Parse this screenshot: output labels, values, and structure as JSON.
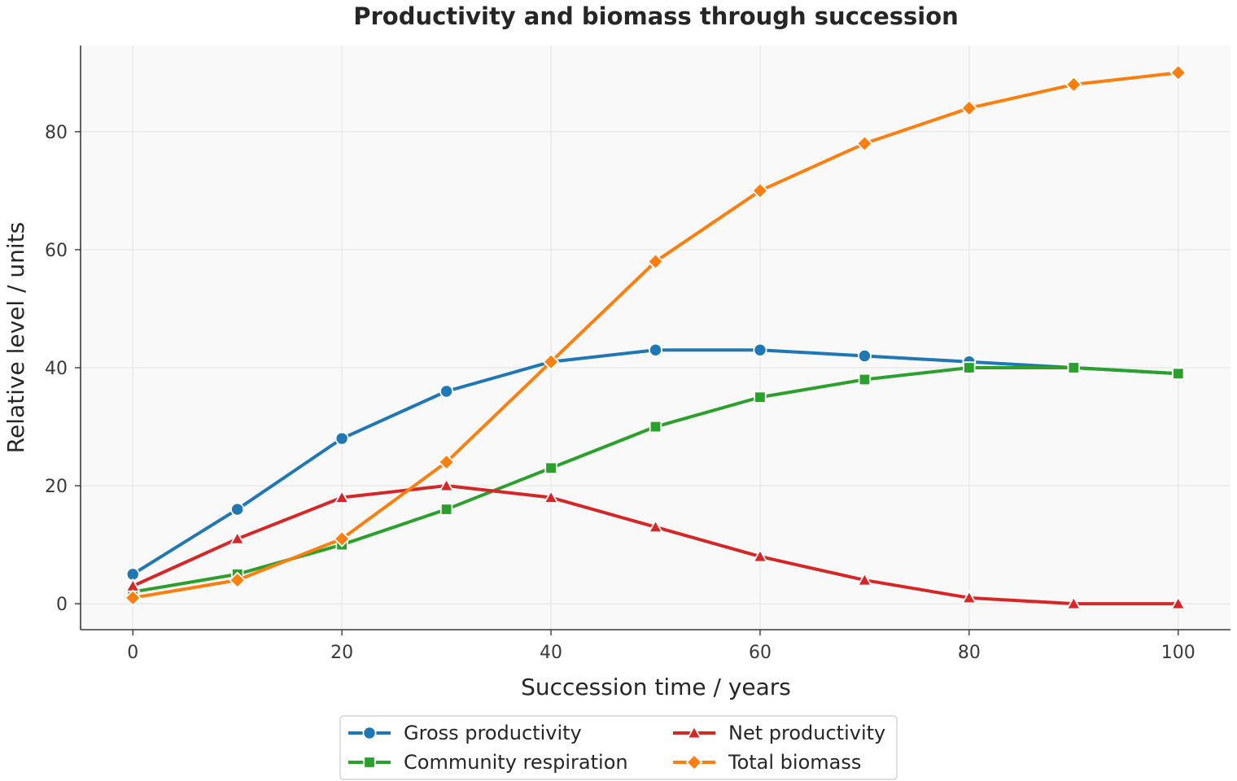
{
  "chart_data": {
    "type": "line",
    "title": "Productivity and biomass through succession",
    "xlabel": "Succession time / years",
    "ylabel": "Relative level / units",
    "x": [
      0,
      10,
      20,
      30,
      40,
      50,
      60,
      70,
      80,
      90,
      100
    ],
    "xlim": [
      -5,
      105
    ],
    "ylim": [
      -4.4,
      94.6
    ],
    "xticks": [
      0,
      20,
      40,
      60,
      80,
      100
    ],
    "yticks": [
      0,
      20,
      40,
      60,
      80
    ],
    "grid": true,
    "legend_position": "bottom-center",
    "series": [
      {
        "name": "Gross productivity",
        "color": "#1f77b4",
        "marker": "circle",
        "values": [
          5,
          16,
          28,
          36,
          41,
          43,
          43,
          42,
          41,
          40,
          39
        ]
      },
      {
        "name": "Community respiration",
        "color": "#2ca02c",
        "marker": "square",
        "values": [
          2,
          5,
          10,
          16,
          23,
          30,
          35,
          38,
          40,
          40,
          39
        ]
      },
      {
        "name": "Net productivity",
        "color": "#d62728",
        "marker": "triangle",
        "values": [
          3,
          11,
          18,
          20,
          18,
          13,
          8,
          4,
          1,
          0,
          0
        ]
      },
      {
        "name": "Total biomass",
        "color": "#ff7f0e",
        "marker": "diamond",
        "values": [
          1,
          4,
          11,
          24,
          41,
          58,
          70,
          78,
          84,
          88,
          90
        ]
      }
    ]
  }
}
